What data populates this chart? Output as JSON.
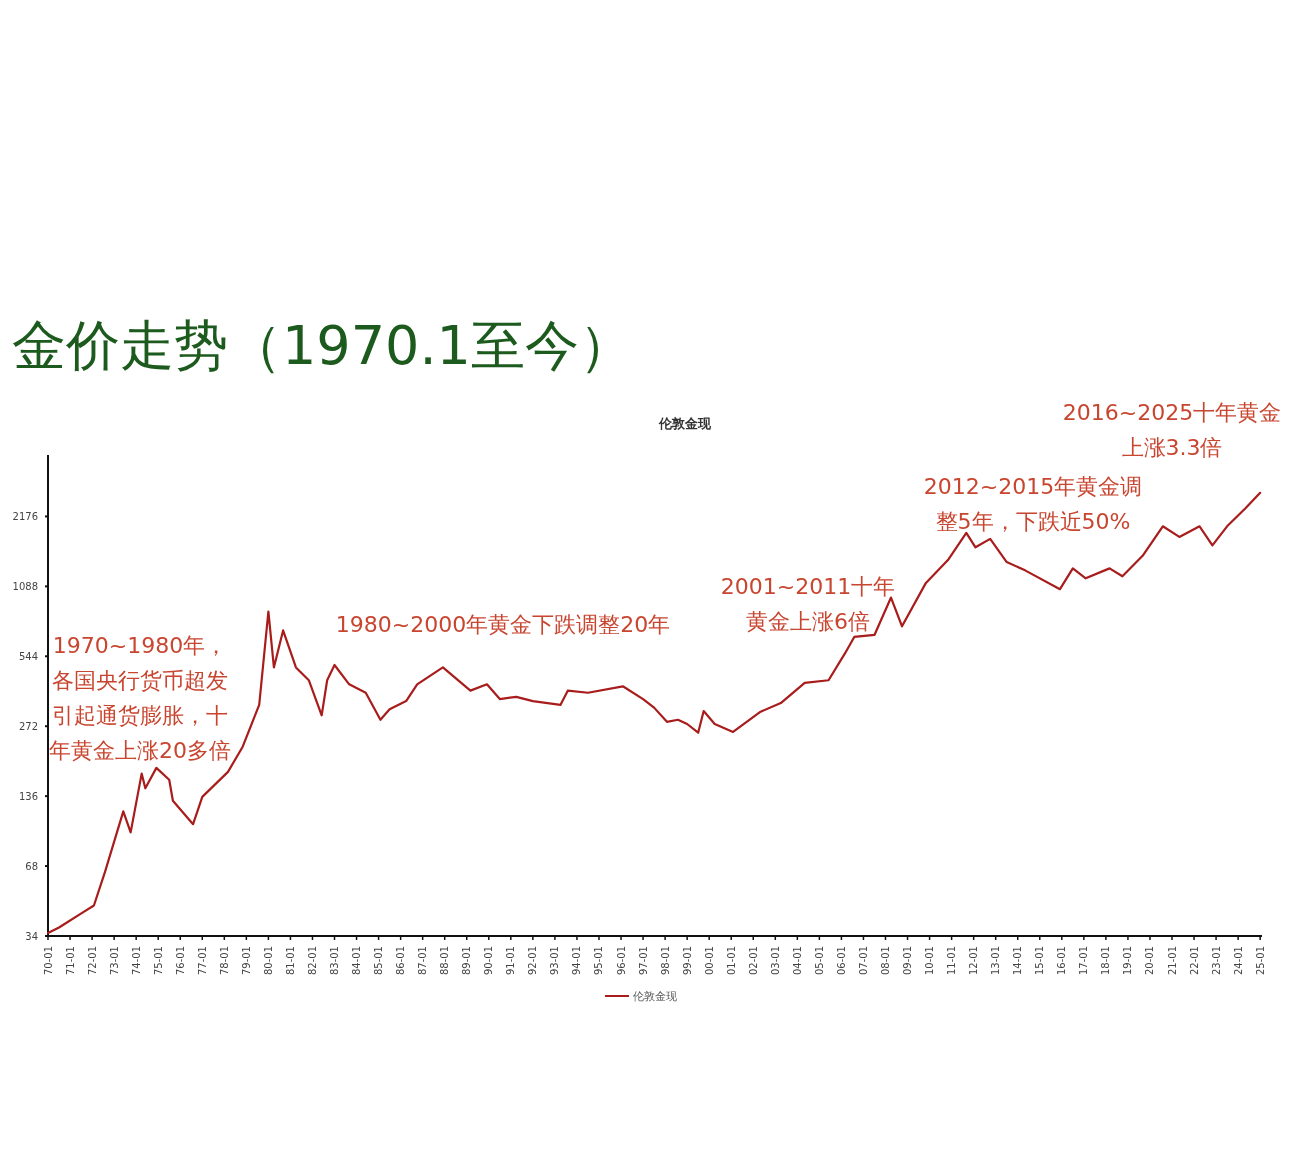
{
  "chart_data": {
    "type": "line",
    "title": "金价走势（1970.1至今）",
    "subtitle": "伦敦金现",
    "log": true,
    "legend": "bottom",
    "grid": false,
    "marker": "none",
    "line_style": "solid",
    "annotations": [
      "1970~1980年，各国央行货币超发引起通货膨胀，十年黄金上涨20多倍",
      "1980~2000年黄金下跌调整20年",
      "2001~2011十年黄金上涨6倍",
      "2012~2015年黄金调整5年，下跌近50%",
      "2016~2025十年黄金上涨3.3倍"
    ],
    "xlim": [
      "1970-01",
      "2025-02"
    ],
    "ylim": [
      34,
      4000
    ],
    "yticks": [
      34,
      68,
      136,
      272,
      544,
      1088,
      2176
    ],
    "xticks": [
      {
        "value": "1970-01",
        "label": "70-01"
      },
      {
        "value": "1971-01",
        "label": "71-01"
      },
      {
        "value": "1972-01",
        "label": "72-01"
      },
      {
        "value": "1973-01",
        "label": "73-01"
      },
      {
        "value": "1974-01",
        "label": "74-01"
      },
      {
        "value": "1975-01",
        "label": "75-01"
      },
      {
        "value": "1976-01",
        "label": "76-01"
      },
      {
        "value": "1977-01",
        "label": "77-01"
      },
      {
        "value": "1978-01",
        "label": "78-01"
      },
      {
        "value": "1979-01",
        "label": "79-01"
      },
      {
        "value": "1980-01",
        "label": "80-01"
      },
      {
        "value": "1981-01",
        "label": "81-01"
      },
      {
        "value": "1982-01",
        "label": "82-01"
      },
      {
        "value": "1983-01",
        "label": "83-01"
      },
      {
        "value": "1984-01",
        "label": "84-01"
      },
      {
        "value": "1985-01",
        "label": "85-01"
      },
      {
        "value": "1986-01",
        "label": "86-01"
      },
      {
        "value": "1987-01",
        "label": "87-01"
      },
      {
        "value": "1988-01",
        "label": "88-01"
      },
      {
        "value": "1989-01",
        "label": "89-01"
      },
      {
        "value": "1990-01",
        "label": "90-01"
      },
      {
        "value": "1991-01",
        "label": "91-01"
      },
      {
        "value": "1992-01",
        "label": "92-01"
      },
      {
        "value": "1993-01",
        "label": "93-01"
      },
      {
        "value": "1994-01",
        "label": "94-01"
      },
      {
        "value": "1995-01",
        "label": "95-01"
      },
      {
        "value": "1996-01",
        "label": "96-01"
      },
      {
        "value": "1997-01",
        "label": "97-01"
      },
      {
        "value": "1998-01",
        "label": "98-01"
      },
      {
        "value": "1999-01",
        "label": "99-01"
      },
      {
        "value": "2000-01",
        "label": "00-01"
      },
      {
        "value": "2001-01",
        "label": "01-01"
      },
      {
        "value": "2002-01",
        "label": "02-01"
      },
      {
        "value": "2003-01",
        "label": "03-01"
      },
      {
        "value": "2004-01",
        "label": "04-01"
      },
      {
        "value": "2005-01",
        "label": "05-01"
      },
      {
        "value": "2006-01",
        "label": "06-01"
      },
      {
        "value": "2007-01",
        "label": "07-01"
      },
      {
        "value": "2008-01",
        "label": "08-01"
      },
      {
        "value": "2009-01",
        "label": "09-01"
      },
      {
        "value": "2010-01",
        "label": "10-01"
      },
      {
        "value": "2011-01",
        "label": "11-01"
      },
      {
        "value": "2012-01",
        "label": "12-01"
      },
      {
        "value": "2013-01",
        "label": "13-01"
      },
      {
        "value": "2014-01",
        "label": "14-01"
      },
      {
        "value": "2015-01",
        "label": "15-01"
      },
      {
        "value": "2016-01",
        "label": "16-01"
      },
      {
        "value": "2017-01",
        "label": "17-01"
      },
      {
        "value": "2018-01",
        "label": "18-01"
      },
      {
        "value": "2019-01",
        "label": "19-01"
      },
      {
        "value": "2020-01",
        "label": "20-01"
      },
      {
        "value": "2021-01",
        "label": "21-01"
      },
      {
        "value": "2022-01",
        "label": "22-01"
      },
      {
        "value": "2023-01",
        "label": "23-01"
      },
      {
        "value": "2024-01",
        "label": "24-01"
      },
      {
        "value": "2025-01",
        "label": "25-01"
      }
    ],
    "x": [
      "1970-01",
      "1970-07",
      "1971-08",
      "1972-02",
      "1972-08",
      "1973-06",
      "1973-10",
      "1974-04",
      "1974-06",
      "1974-12",
      "1975-07",
      "1975-09",
      "1976-08",
      "1977-01",
      "1978-03",
      "1978-11",
      "1979-08",
      "1980-01",
      "1980-04",
      "1980-09",
      "1981-04",
      "1981-11",
      "1982-06",
      "1982-09",
      "1983-01",
      "1983-09",
      "1984-06",
      "1985-02",
      "1985-07",
      "1986-04",
      "1986-10",
      "1987-12",
      "1989-03",
      "1989-12",
      "1990-07",
      "1991-04",
      "1992-01",
      "1993-04",
      "1993-08",
      "1994-07",
      "1996-02",
      "1997-01",
      "1997-07",
      "1998-02",
      "1998-08",
      "1999-01",
      "1999-07",
      "1999-10",
      "2000-04",
      "2001-02",
      "2002-05",
      "2003-04",
      "2004-05",
      "2005-06",
      "2006-03",
      "2006-08",
      "2007-07",
      "2008-04",
      "2008-10",
      "2009-11",
      "2010-11",
      "2011-09",
      "2012-02",
      "2012-10",
      "2013-07",
      "2014-05",
      "2015-12",
      "2016-07",
      "2017-02",
      "2018-03",
      "2018-10",
      "2019-09",
      "2020-08",
      "2021-05",
      "2022-04",
      "2022-11",
      "2023-07",
      "2024-05",
      "2025-01"
    ],
    "series": [
      {
        "name": "伦敦金现",
        "color": "#a81c1c",
        "values": [
          35,
          37,
          43,
          46,
          64,
          117,
          95,
          170,
          147,
          180,
          160,
          130,
          103,
          135,
          173,
          222,
          336,
          848,
          487,
          703,
          487,
          429,
          303,
          429,
          499,
          412,
          379,
          290,
          322,
          349,
          412,
          487,
          387,
          412,
          356,
          364,
          349,
          336,
          387,
          379,
          404,
          356,
          327,
          284,
          290,
          278,
          255,
          316,
          278,
          257,
          314,
          342,
          418,
          429,
          561,
          659,
          672,
          974,
          732,
          1126,
          1412,
          1848,
          1602,
          1741,
          1384,
          1275,
          1058,
          1300,
          1178,
          1300,
          1202,
          1472,
          1973,
          1776,
          1973,
          1634,
          1973,
          2359,
          2750
        ]
      }
    ]
  }
}
